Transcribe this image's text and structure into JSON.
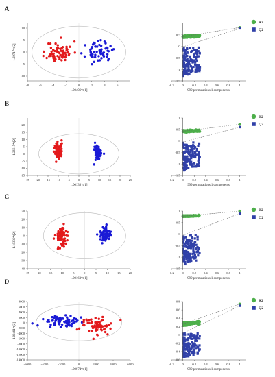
{
  "chart_data": [
    {
      "panel": "A",
      "type": "scatter",
      "plot": "scores",
      "xlabel": "1.00406*t[1]",
      "ylabel": "1.22717*t[2]",
      "xlim": [
        -8,
        8
      ],
      "ylim": [
        -12,
        12
      ],
      "xticks": [
        "-8",
        "-6",
        "-4",
        "-2",
        "0",
        "2",
        "4",
        "6"
      ],
      "xticks_v": [
        -8,
        -6,
        -4,
        -2,
        0,
        2,
        4,
        6
      ],
      "yticks": [
        "10",
        "5",
        "0",
        "-5",
        "-10"
      ],
      "yticks_v": [
        10,
        5,
        0,
        -5,
        -10
      ],
      "ellipse": {
        "cx": 0,
        "cy": 0,
        "rx": 7.3,
        "ry": 10.8
      },
      "series": [
        {
          "color": "#e31a1c",
          "seed": 11,
          "n": 70,
          "cx": -3.0,
          "cy": 0,
          "sx": 1.0,
          "sy": 4.0
        },
        {
          "color": "#1a1ad6",
          "seed": 23,
          "n": 62,
          "cx": 3.1,
          "cy": 0,
          "sx": 1.0,
          "sy": 3.6
        }
      ]
    },
    {
      "panel": "A",
      "type": "scatter",
      "plot": "permutation",
      "xlabel": "999 permutations 1 components",
      "xlim": [
        -0.2,
        1.1
      ],
      "ylim": [
        -1.5,
        1.0
      ],
      "xticks": [
        "-0.2",
        "0",
        "0.2",
        "0.4",
        "0.6",
        "0.8",
        "1"
      ],
      "xticks_v": [
        -0.2,
        0,
        0.2,
        0.4,
        0.6,
        0.8,
        1
      ],
      "yticks": [
        "0.5",
        "0",
        "-0.5",
        "-1",
        "-1.5"
      ],
      "yticks_v": [
        0.5,
        0,
        -0.5,
        -1,
        -1.5
      ],
      "r2": {
        "name": "R2",
        "color": "#4daf4a",
        "final": 0.82,
        "base": 0.42,
        "spread": 0.1
      },
      "q2": {
        "name": "Q2",
        "color": "#3040a8",
        "final": 0.78,
        "top": -0.02,
        "bottom": -1.32
      },
      "legend": "right"
    },
    {
      "panel": "B",
      "type": "scatter",
      "plot": "scores",
      "xlabel": "1.00138*t[1]",
      "ylabel": "1.26615*t[2]",
      "xlim": [
        -25,
        25
      ],
      "ylim": [
        -15,
        25
      ],
      "xticks": [
        "-25",
        "-20",
        "-15",
        "-10",
        "-5",
        "0",
        "5",
        "10",
        "15",
        "20",
        "25"
      ],
      "xticks_v": [
        -25,
        -20,
        -15,
        -10,
        -5,
        0,
        5,
        10,
        15,
        20,
        25
      ],
      "yticks": [
        "20",
        "15",
        "10",
        "5",
        "0",
        "-5",
        "-10",
        "-15"
      ],
      "yticks_v": [
        20,
        15,
        10,
        5,
        0,
        -5,
        -10,
        -15
      ],
      "ellipse": {
        "cx": 0,
        "cy": 0,
        "rx": 19.5,
        "ry": 14
      },
      "series": [
        {
          "color": "#e31a1c",
          "seed": 31,
          "n": 75,
          "cx": -10,
          "cy": 2,
          "sx": 1.0,
          "sy": 5.5
        },
        {
          "color": "#1a1ad6",
          "seed": 47,
          "n": 65,
          "cx": 9,
          "cy": 1,
          "sx": 1.0,
          "sy": 4.8
        }
      ]
    },
    {
      "panel": "B",
      "type": "scatter",
      "plot": "permutation",
      "xlabel": "999 permutations 1 components",
      "xlim": [
        -0.2,
        1.1
      ],
      "ylim": [
        -1.5,
        1.0
      ],
      "xticks": [
        "-0.2",
        "0",
        "0.2",
        "0.4",
        "0.6",
        "0.8",
        "1"
      ],
      "xticks_v": [
        -0.2,
        0,
        0.2,
        0.4,
        0.6,
        0.8,
        1
      ],
      "yticks": [
        "1",
        "0.5",
        "0",
        "-0.5",
        "-1",
        "-1.5"
      ],
      "yticks_v": [
        1,
        0.5,
        0,
        -0.5,
        -1,
        -1.5
      ],
      "r2": {
        "name": "R2",
        "color": "#4daf4a",
        "final": 0.72,
        "base": 0.42,
        "spread": 0.1
      },
      "q2": {
        "name": "Q2",
        "color": "#3040a8",
        "final": 0.6,
        "top": -0.05,
        "bottom": -1.3
      },
      "legend": "right"
    },
    {
      "panel": "C",
      "type": "scatter",
      "plot": "scores",
      "xlabel": "1.00163*t[1]",
      "ylabel": "1.18336*t[2]",
      "xlim": [
        -25,
        20
      ],
      "ylim": [
        -40,
        30
      ],
      "xticks": [
        "-25",
        "-20",
        "-15",
        "-10",
        "-5",
        "0",
        "5",
        "10",
        "15",
        "20"
      ],
      "xticks_v": [
        -25,
        -20,
        -15,
        -10,
        -5,
        0,
        5,
        10,
        15,
        20
      ],
      "yticks": [
        "30",
        "20",
        "10",
        "0",
        "-10",
        "-20",
        "-30",
        "-40"
      ],
      "yticks_v": [
        30,
        20,
        10,
        0,
        -10,
        -20,
        -30,
        -40
      ],
      "ellipse": {
        "cx": 0,
        "cy": 0,
        "rx": 18,
        "ry": 28
      },
      "series": [
        {
          "color": "#e31a1c",
          "seed": 53,
          "n": 80,
          "cx": -10,
          "cy": 0,
          "sx": 1.3,
          "sy": 12
        },
        {
          "color": "#1a1ad6",
          "seed": 67,
          "n": 72,
          "cx": 9,
          "cy": 1,
          "sx": 1.2,
          "sy": 9
        }
      ]
    },
    {
      "panel": "C",
      "type": "scatter",
      "plot": "permutation",
      "xlabel": "999 permutations 1 components",
      "xlim": [
        -0.2,
        1.1
      ],
      "ylim": [
        -1.5,
        1.0
      ],
      "xticks": [
        "-0.2",
        "0",
        "0.2",
        "0.4",
        "0.6",
        "0.8",
        "1"
      ],
      "xticks_v": [
        -0.2,
        0,
        0.2,
        0.4,
        0.6,
        0.8,
        1
      ],
      "yticks": [
        "1",
        "0.5",
        "0",
        "-0.5",
        "-1",
        "-1.5"
      ],
      "yticks_v": [
        1,
        0.5,
        0,
        -0.5,
        -1,
        -1.5
      ],
      "r2": {
        "name": "R2",
        "color": "#4daf4a",
        "final": 1.0,
        "base": 0.78,
        "spread": 0.06
      },
      "q2": {
        "name": "Q2",
        "color": "#3040a8",
        "final": 0.9,
        "top": -0.05,
        "bottom": -1.35
      },
      "legend": "right"
    },
    {
      "panel": "D",
      "type": "scatter",
      "plot": "scores",
      "xlabel": "1.00674*t[1]",
      "ylabel": "1.00481*t[2]",
      "xlim": [
        -6000,
        6000
      ],
      "ylim": [
        -14000,
        8000
      ],
      "xticks": [
        "-6000",
        "-4000",
        "-2000",
        "0",
        "2000",
        "4000",
        "6000"
      ],
      "xticks_v": [
        -6000,
        -4000,
        -2000,
        0,
        2000,
        4000,
        6000
      ],
      "yticks": [
        "8000",
        "6000",
        "4000",
        "2000",
        "0",
        "-2000",
        "-4000",
        "-6000",
        "-8000",
        "-10000",
        "-12000",
        "-14000"
      ],
      "yticks_v": [
        8000,
        6000,
        4000,
        2000,
        0,
        -2000,
        -4000,
        -6000,
        -8000,
        -10000,
        -12000,
        -14000
      ],
      "ellipse": {
        "cx": 0,
        "cy": 0,
        "rx": 5000,
        "ry": 6800
      },
      "series": [
        {
          "color": "#1a1ad6",
          "seed": 79,
          "n": 80,
          "cx": -2000,
          "cy": 800,
          "sx": 1100,
          "sy": 1800
        },
        {
          "color": "#e31a1c",
          "seed": 97,
          "n": 75,
          "cx": 1800,
          "cy": -1200,
          "sx": 1000,
          "sy": 3000
        }
      ]
    },
    {
      "panel": "D",
      "type": "scatter",
      "plot": "permutation",
      "xlabel": "999 permutations 1 components",
      "xlim": [
        -0.2,
        1.1
      ],
      "ylim": [
        -0.6,
        0.8
      ],
      "xticks": [
        "-0.2",
        "0",
        "0.2",
        "0.4",
        "0.6",
        "0.8",
        "1"
      ],
      "xticks_v": [
        -0.2,
        0,
        0.2,
        0.4,
        0.6,
        0.8,
        1
      ],
      "yticks": [
        "0.8",
        "0.6",
        "0.4",
        "0.2",
        "0",
        "-0.2",
        "-0.4",
        "-0.6"
      ],
      "yticks_v": [
        0.8,
        0.6,
        0.4,
        0.2,
        0,
        -0.2,
        -0.4,
        -0.6
      ],
      "r2": {
        "name": "R2",
        "color": "#4daf4a",
        "final": 0.74,
        "base": 0.26,
        "spread": 0.08
      },
      "q2": {
        "name": "Q2",
        "color": "#3040a8",
        "final": 0.7,
        "top": 0.04,
        "bottom": -0.55
      },
      "legend": "right"
    }
  ]
}
